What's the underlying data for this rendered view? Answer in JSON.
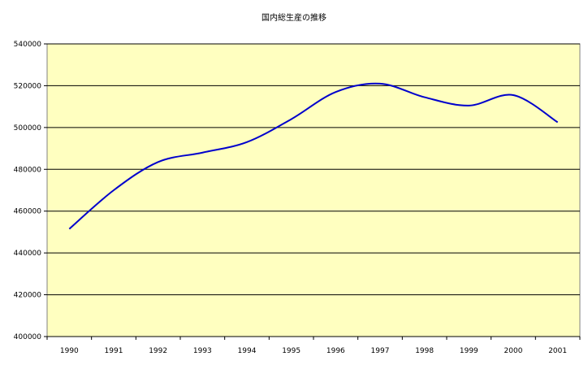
{
  "chart_data": {
    "type": "line",
    "title": "国内総生産の推移",
    "xlabel": "",
    "ylabel": "",
    "categories": [
      "1990",
      "1991",
      "1992",
      "1993",
      "1994",
      "1995",
      "1996",
      "1997",
      "1998",
      "1999",
      "2000",
      "2001"
    ],
    "series": [
      {
        "values": [
          451500,
          470000,
          483500,
          488000,
          493000,
          504000,
          517000,
          521000,
          514500,
          510500,
          515500,
          502500
        ]
      }
    ],
    "ylim": [
      400000,
      540000
    ],
    "yticks": [
      "400000",
      "420000",
      "440000",
      "460000",
      "480000",
      "500000",
      "520000",
      "540000"
    ],
    "grid": "horizontal",
    "legend": "none",
    "colors": {
      "plot_background": "#ffffc0",
      "line": "#0000cc",
      "gridline": "#000000"
    }
  }
}
